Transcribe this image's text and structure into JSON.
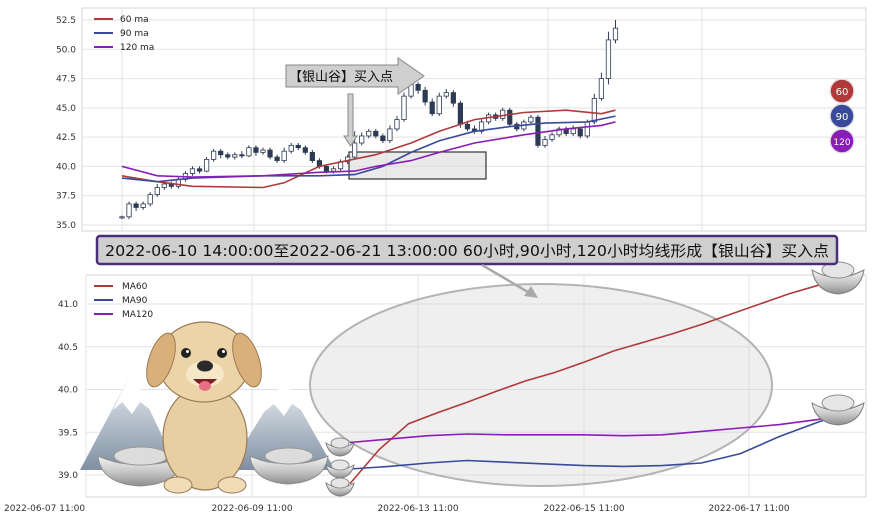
{
  "chart_data": [
    {
      "type": "line",
      "subtype": "candlestick-with-moving-averages",
      "y_ticks": [
        "52.5",
        "50.0",
        "47.5",
        "45.0",
        "42.5",
        "40.0",
        "37.5",
        "35.0"
      ],
      "ylim": [
        34.5,
        53.5
      ],
      "grid": true,
      "legend_position": "top-left",
      "series": [
        {
          "name": "60 ma",
          "color": "#b03a3a",
          "points": [
            [
              0,
              39.2
            ],
            [
              5,
              38.7
            ],
            [
              10,
              38.3
            ],
            [
              20,
              38.2
            ],
            [
              23,
              38.6
            ],
            [
              28,
              40.0
            ],
            [
              36,
              41.0
            ],
            [
              41,
              42.0
            ],
            [
              45,
              43.0
            ],
            [
              50,
              44.0
            ],
            [
              57,
              44.6
            ],
            [
              63,
              44.8
            ],
            [
              68,
              44.5
            ],
            [
              70,
              44.8
            ]
          ]
        },
        {
          "name": "90 ma",
          "color": "#3a4a9a",
          "points": [
            [
              0,
              39.0
            ],
            [
              5,
              38.7
            ],
            [
              10,
              39.0
            ],
            [
              20,
              39.2
            ],
            [
              28,
              39.2
            ],
            [
              33,
              39.3
            ],
            [
              37,
              40.0
            ],
            [
              41,
              41.2
            ],
            [
              45,
              42.2
            ],
            [
              50,
              43.0
            ],
            [
              55,
              43.4
            ],
            [
              60,
              43.7
            ],
            [
              66,
              43.8
            ],
            [
              70,
              44.3
            ]
          ]
        },
        {
          "name": "120 ma",
          "color": "#8a1cb8",
          "points": [
            [
              0,
              40.0
            ],
            [
              5,
              39.2
            ],
            [
              10,
              39.1
            ],
            [
              20,
              39.2
            ],
            [
              28,
              39.5
            ],
            [
              33,
              39.6
            ],
            [
              36,
              40.0
            ],
            [
              41,
              40.5
            ],
            [
              45,
              41.2
            ],
            [
              50,
              42.0
            ],
            [
              57,
              42.7
            ],
            [
              63,
              43.2
            ],
            [
              68,
              43.5
            ],
            [
              70,
              43.8
            ]
          ]
        }
      ],
      "candles": [
        [
          0,
          35.6,
          35.7,
          35.5,
          35.8
        ],
        [
          1,
          35.7,
          36.8,
          35.5,
          37.0
        ],
        [
          2,
          36.8,
          36.5,
          36.2,
          37.0
        ],
        [
          3,
          36.5,
          36.8,
          36.3,
          37.0
        ],
        [
          4,
          36.8,
          37.6,
          36.6,
          37.8
        ],
        [
          5,
          37.6,
          38.2,
          37.4,
          38.5
        ],
        [
          6,
          38.2,
          38.5,
          38.0,
          38.7
        ],
        [
          7,
          38.5,
          38.3,
          38.1,
          38.7
        ],
        [
          8,
          38.3,
          38.9,
          38.1,
          39.1
        ],
        [
          9,
          38.9,
          39.4,
          38.7,
          39.6
        ],
        [
          10,
          39.4,
          39.8,
          39.2,
          40.0
        ],
        [
          11,
          39.8,
          39.6,
          39.4,
          40.0
        ],
        [
          12,
          39.6,
          40.6,
          39.5,
          40.8
        ],
        [
          13,
          40.6,
          41.3,
          40.4,
          41.5
        ],
        [
          14,
          41.3,
          41.0,
          40.7,
          41.5
        ],
        [
          15,
          41.0,
          40.8,
          40.6,
          41.2
        ],
        [
          16,
          40.8,
          41.0,
          40.6,
          41.2
        ],
        [
          17,
          41.0,
          40.9,
          40.7,
          41.3
        ],
        [
          18,
          40.9,
          41.6,
          40.8,
          41.8
        ],
        [
          19,
          41.6,
          41.2,
          40.9,
          41.8
        ],
        [
          20,
          41.2,
          41.4,
          41.0,
          41.6
        ],
        [
          21,
          41.4,
          40.8,
          40.6,
          41.6
        ],
        [
          22,
          40.8,
          40.5,
          40.3,
          41.0
        ],
        [
          23,
          40.5,
          41.3,
          40.3,
          41.6
        ],
        [
          24,
          41.3,
          41.8,
          41.1,
          42.0
        ],
        [
          25,
          41.8,
          41.6,
          41.4,
          42.0
        ],
        [
          26,
          41.6,
          41.2,
          41.0,
          41.8
        ],
        [
          27,
          41.2,
          40.5,
          40.3,
          41.4
        ],
        [
          28,
          40.5,
          40.0,
          39.8,
          40.7
        ],
        [
          29,
          40.0,
          39.6,
          39.4,
          40.2
        ],
        [
          30,
          39.6,
          39.8,
          39.4,
          40.0
        ],
        [
          31,
          39.8,
          40.4,
          39.6,
          40.6
        ],
        [
          32,
          40.4,
          40.8,
          40.2,
          41.0
        ],
        [
          33,
          40.8,
          42.0,
          40.6,
          43.0
        ],
        [
          34,
          42.0,
          42.6,
          41.8,
          42.9
        ],
        [
          35,
          42.6,
          43.0,
          42.4,
          43.2
        ],
        [
          36,
          43.0,
          42.6,
          42.4,
          43.2
        ],
        [
          37,
          42.6,
          42.2,
          42.0,
          42.8
        ],
        [
          38,
          42.2,
          43.2,
          42.0,
          43.5
        ],
        [
          39,
          43.2,
          44.0,
          43.0,
          44.3
        ],
        [
          40,
          44.0,
          46.0,
          43.8,
          46.3
        ],
        [
          41,
          46.0,
          47.0,
          45.8,
          47.3
        ],
        [
          42,
          47.0,
          46.5,
          46.2,
          47.2
        ],
        [
          43,
          46.5,
          45.5,
          45.2,
          46.8
        ],
        [
          44,
          45.5,
          44.5,
          44.3,
          45.8
        ],
        [
          45,
          44.5,
          46.0,
          44.3,
          46.3
        ],
        [
          46,
          46.0,
          46.3,
          45.8,
          46.6
        ],
        [
          47,
          46.3,
          45.4,
          45.1,
          46.5
        ],
        [
          48,
          45.4,
          43.6,
          43.3,
          45.6
        ],
        [
          49,
          43.6,
          43.2,
          43.0,
          43.9
        ],
        [
          50,
          43.2,
          43.0,
          42.8,
          43.5
        ],
        [
          51,
          43.0,
          43.8,
          42.8,
          44.0
        ],
        [
          52,
          43.8,
          44.4,
          43.6,
          44.6
        ],
        [
          53,
          44.4,
          44.1,
          43.9,
          44.6
        ],
        [
          54,
          44.1,
          44.8,
          43.9,
          45.0
        ],
        [
          55,
          44.8,
          43.6,
          43.4,
          45.0
        ],
        [
          56,
          43.6,
          43.2,
          43.0,
          43.8
        ],
        [
          57,
          43.2,
          43.8,
          43.0,
          44.0
        ],
        [
          58,
          43.8,
          44.2,
          43.6,
          44.4
        ],
        [
          59,
          44.2,
          41.8,
          41.6,
          44.4
        ],
        [
          60,
          41.8,
          42.3,
          41.6,
          42.6
        ],
        [
          61,
          42.3,
          42.7,
          42.1,
          42.9
        ],
        [
          62,
          42.7,
          43.2,
          42.5,
          43.4
        ],
        [
          63,
          43.2,
          42.8,
          42.6,
          43.4
        ],
        [
          64,
          42.8,
          43.2,
          42.6,
          43.5
        ],
        [
          65,
          43.2,
          42.6,
          42.4,
          43.4
        ],
        [
          66,
          42.6,
          43.8,
          42.4,
          44.0
        ],
        [
          67,
          43.8,
          45.8,
          43.6,
          46.2
        ],
        [
          68,
          45.8,
          47.5,
          45.6,
          48.0
        ],
        [
          69,
          47.5,
          50.8,
          47.0,
          51.5
        ],
        [
          70,
          50.8,
          51.8,
          50.5,
          52.5
        ]
      ],
      "badges": [
        "60",
        "90",
        "120"
      ]
    },
    {
      "type": "line",
      "y_ticks": [
        "41.0",
        "40.5",
        "40.0",
        "39.5",
        "39.0"
      ],
      "ylim": [
        38.85,
        41.35
      ],
      "x_ticks": [
        "2022-06-07 11:00",
        "2022-06-09 11:00",
        "2022-06-13 11:00",
        "2022-06-15 11:00",
        "2022-06-17 11:00"
      ],
      "grid": true,
      "legend_position": "top-left",
      "series": [
        {
          "name": "MA60",
          "color": "#b03a3a",
          "points": [
            [
              0,
              38.9
            ],
            [
              3,
              39.3
            ],
            [
              6,
              39.6
            ],
            [
              9,
              39.73
            ],
            [
              12,
              39.85
            ],
            [
              15,
              39.98
            ],
            [
              18,
              40.1
            ],
            [
              21,
              40.2
            ],
            [
              24,
              40.32
            ],
            [
              27,
              40.45
            ],
            [
              30,
              40.55
            ],
            [
              33,
              40.65
            ],
            [
              36,
              40.76
            ],
            [
              39,
              40.88
            ],
            [
              42,
              41.0
            ],
            [
              45,
              41.12
            ],
            [
              48,
              41.22
            ],
            [
              50,
              41.27
            ]
          ]
        },
        {
          "name": "MA90",
          "color": "#3a4a9a",
          "points": [
            [
              0,
              39.07
            ],
            [
              4,
              39.1
            ],
            [
              8,
              39.14
            ],
            [
              12,
              39.17
            ],
            [
              16,
              39.15
            ],
            [
              20,
              39.13
            ],
            [
              24,
              39.11
            ],
            [
              28,
              39.1
            ],
            [
              32,
              39.11
            ],
            [
              36,
              39.14
            ],
            [
              40,
              39.25
            ],
            [
              44,
              39.45
            ],
            [
              48,
              39.62
            ],
            [
              50,
              39.7
            ]
          ]
        },
        {
          "name": "MA120",
          "color": "#8a1cb8",
          "points": [
            [
              0,
              39.38
            ],
            [
              4,
              39.42
            ],
            [
              8,
              39.46
            ],
            [
              12,
              39.48
            ],
            [
              16,
              39.47
            ],
            [
              20,
              39.47
            ],
            [
              24,
              39.47
            ],
            [
              28,
              39.46
            ],
            [
              32,
              39.47
            ],
            [
              36,
              39.51
            ],
            [
              40,
              39.55
            ],
            [
              44,
              39.59
            ],
            [
              48,
              39.65
            ],
            [
              50,
              39.7
            ]
          ]
        }
      ]
    }
  ],
  "signal_label": "【银山谷】买入点",
  "banner_text": "2022-06-10 14:00:00至2022-06-21 13:00:00 60小时,90小时,120小时均线形成【银山谷】买入点",
  "colors": {
    "ma60": "#b03a3a",
    "ma90": "#3a4a9a",
    "ma120": "#8a1cb8",
    "banner_bg": "#cfcfcf",
    "banner_border": "#4a2d7a"
  }
}
